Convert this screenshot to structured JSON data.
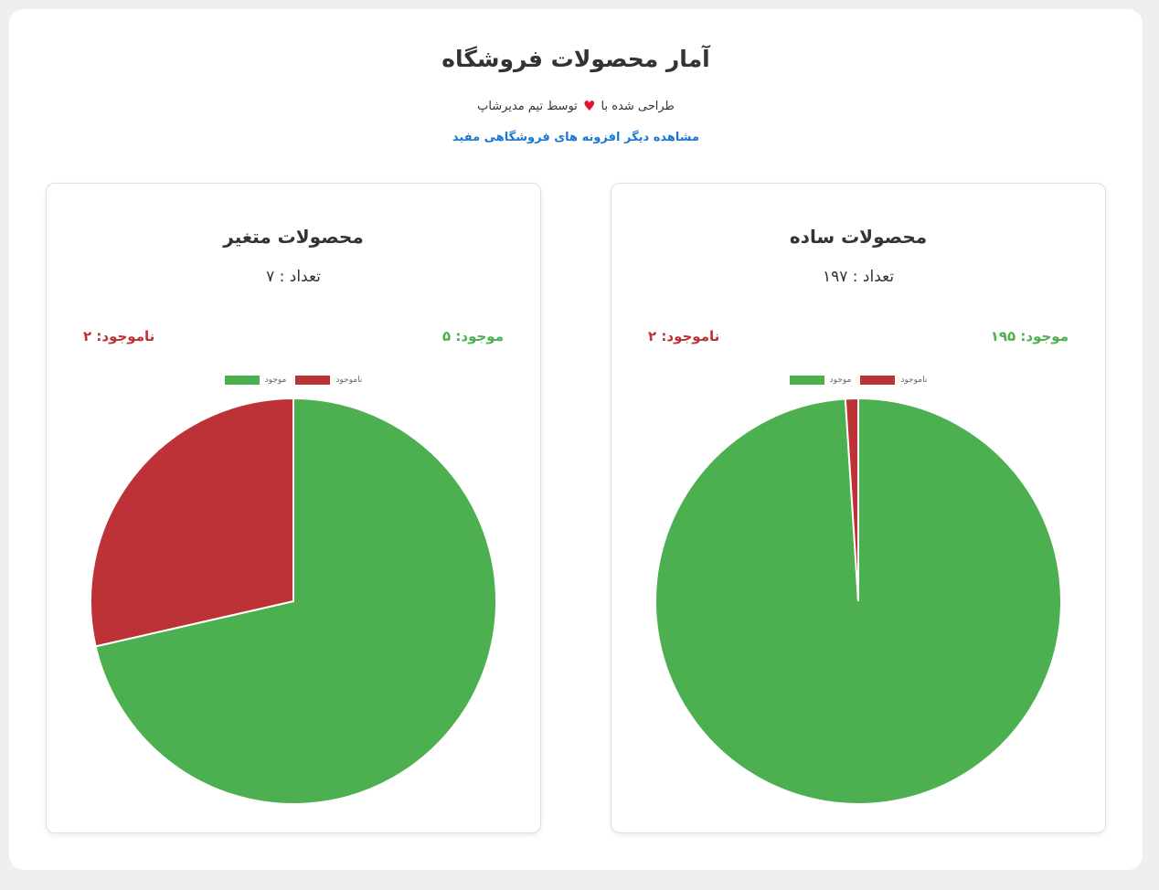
{
  "header": {
    "title": "آمار محصولات فروشگاه",
    "credit_before": "طراحی شده با",
    "credit_after": "توسط تیم مدیرشاپ",
    "more_link": "مشاهده دیگر افزونه های فروشگاهی مفید"
  },
  "colors": {
    "in_stock": "#4caf50",
    "out_of_stock": "#bc3236",
    "heart": "#e0182d",
    "link": "#1976d2"
  },
  "chart_data": [
    {
      "type": "pie",
      "title": "محصولات ساده",
      "count_text": "تعداد : ۱۹۷",
      "in_stock_text": "موجود: ۱۹۵",
      "out_of_stock_text": "ناموجود: ۲",
      "legend": [
        "موجود",
        "ناموجود"
      ],
      "labels": [
        "موجود",
        "ناموجود"
      ],
      "values": [
        195,
        2
      ],
      "colors": [
        "#4caf50",
        "#bc3236"
      ],
      "legend_position": "top"
    },
    {
      "type": "pie",
      "title": "محصولات متغیر",
      "count_text": "تعداد : ۷",
      "in_stock_text": "موجود: ۵",
      "out_of_stock_text": "ناموجود: ۲",
      "legend": [
        "موجود",
        "ناموجود"
      ],
      "labels": [
        "موجود",
        "ناموجود"
      ],
      "values": [
        5,
        2
      ],
      "colors": [
        "#4caf50",
        "#bc3236"
      ],
      "legend_position": "top"
    }
  ]
}
